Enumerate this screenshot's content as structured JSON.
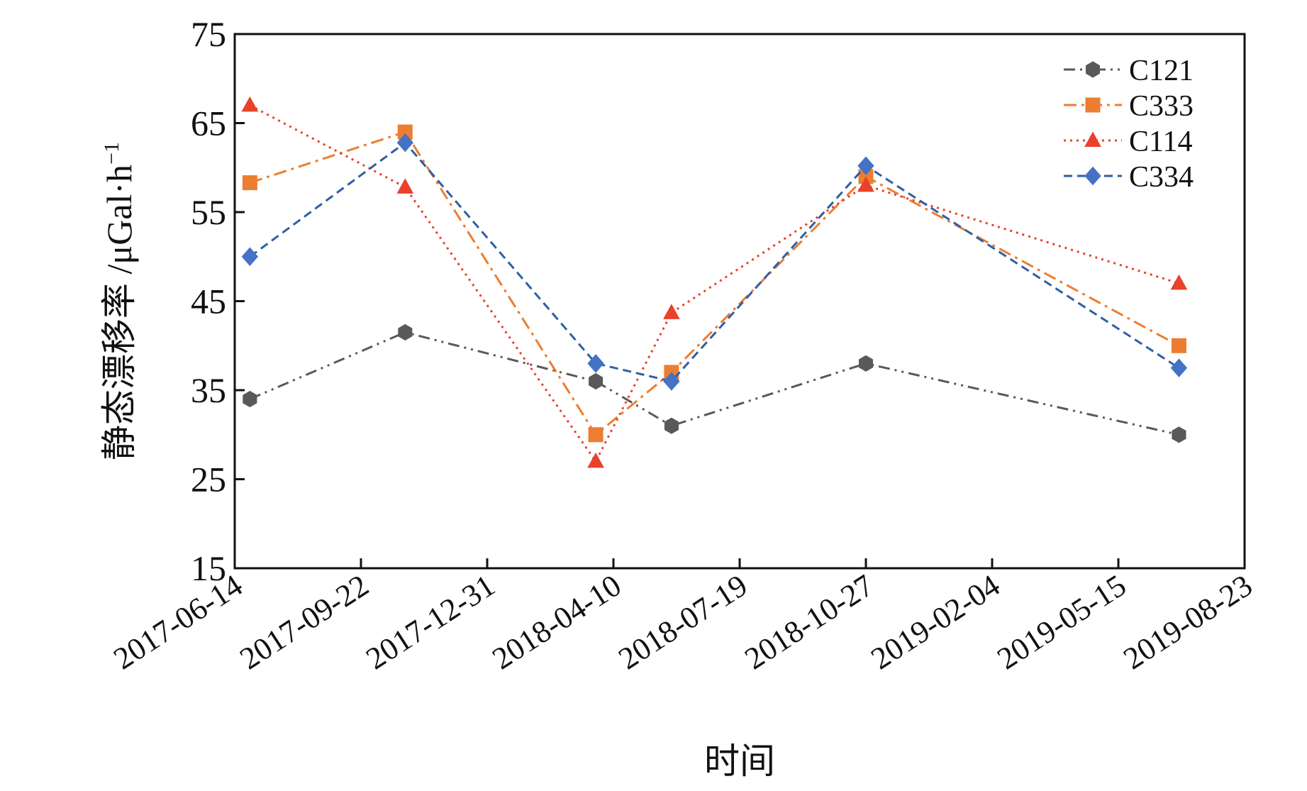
{
  "chart_data": {
    "type": "line",
    "title": "",
    "xlabel": "时间",
    "ylabel": "静态漂移率 /μGal·h",
    "ylabel_superscript": "−1",
    "ylim": [
      15,
      75
    ],
    "yticks": [
      15,
      25,
      35,
      45,
      55,
      65,
      75
    ],
    "x_tick_labels": [
      "2017-06-14",
      "2017-09-22",
      "2017-12-31",
      "2018-04-10",
      "2018-07-19",
      "2018-10-27",
      "2019-02-04",
      "2019-05-15",
      "2019-08-23"
    ],
    "x_tick_days": [
      0,
      100,
      200,
      300,
      400,
      500,
      600,
      700,
      800
    ],
    "x_range_days": [
      0,
      800
    ],
    "legend_position": "top-right",
    "grid": false,
    "series": [
      {
        "name": "C121",
        "color": "#595959",
        "marker": "hexagon",
        "dash": "dash-dot-dot",
        "points": [
          {
            "x_days": 12,
            "y": 34
          },
          {
            "x_days": 135,
            "y": 41.5
          },
          {
            "x_days": 286,
            "y": 36
          },
          {
            "x_days": 346,
            "y": 31
          },
          {
            "x_days": 500,
            "y": 38
          },
          {
            "x_days": 748,
            "y": 30
          }
        ]
      },
      {
        "name": "C333",
        "color": "#ED7D31",
        "marker": "square",
        "dash": "dash-dot",
        "points": [
          {
            "x_days": 12,
            "y": 58.3
          },
          {
            "x_days": 135,
            "y": 64
          },
          {
            "x_days": 286,
            "y": 30
          },
          {
            "x_days": 346,
            "y": 37
          },
          {
            "x_days": 500,
            "y": 59
          },
          {
            "x_days": 748,
            "y": 40
          }
        ]
      },
      {
        "name": "C114",
        "color": "#E8422B",
        "marker": "triangle",
        "dash": "dotted",
        "points": [
          {
            "x_days": 12,
            "y": 67
          },
          {
            "x_days": 135,
            "y": 57.8
          },
          {
            "x_days": 286,
            "y": 27
          },
          {
            "x_days": 346,
            "y": 43.7
          },
          {
            "x_days": 500,
            "y": 58
          },
          {
            "x_days": 748,
            "y": 47
          }
        ]
      },
      {
        "name": "C334",
        "color": "#2E5FA3",
        "marker": "diamond",
        "dash": "dashed",
        "markerColor": "#4472C4",
        "points": [
          {
            "x_days": 12,
            "y": 50
          },
          {
            "x_days": 135,
            "y": 62.8
          },
          {
            "x_days": 286,
            "y": 38
          },
          {
            "x_days": 346,
            "y": 36
          },
          {
            "x_days": 500,
            "y": 60.2
          },
          {
            "x_days": 748,
            "y": 37.5
          }
        ]
      }
    ]
  }
}
